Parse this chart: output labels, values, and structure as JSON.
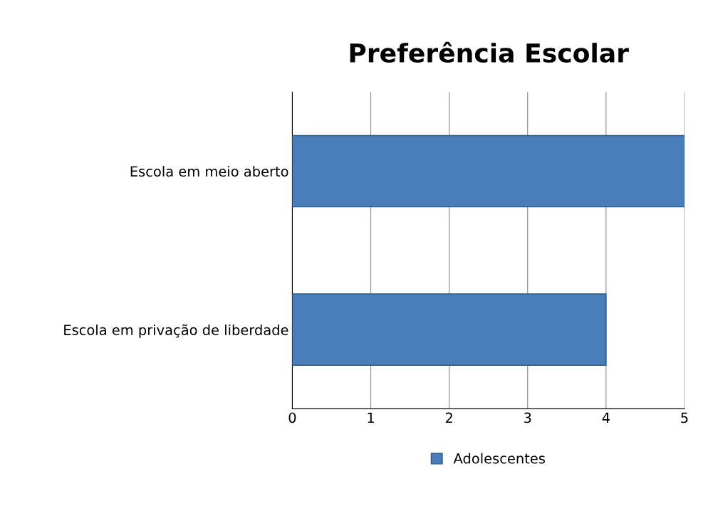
{
  "chart_data": {
    "type": "bar",
    "orientation": "horizontal",
    "title": "Preferência Escolar",
    "categories": [
      "Escola em meio aberto",
      "Escola em privação de liberdade"
    ],
    "series": [
      {
        "name": "Adolescentes",
        "color": "#4a7ebb",
        "values": [
          5,
          4
        ]
      }
    ],
    "xlim": [
      0,
      5
    ],
    "xticks": [
      0,
      1,
      2,
      3,
      4,
      5
    ],
    "grid": "x",
    "legend": "bottom"
  }
}
